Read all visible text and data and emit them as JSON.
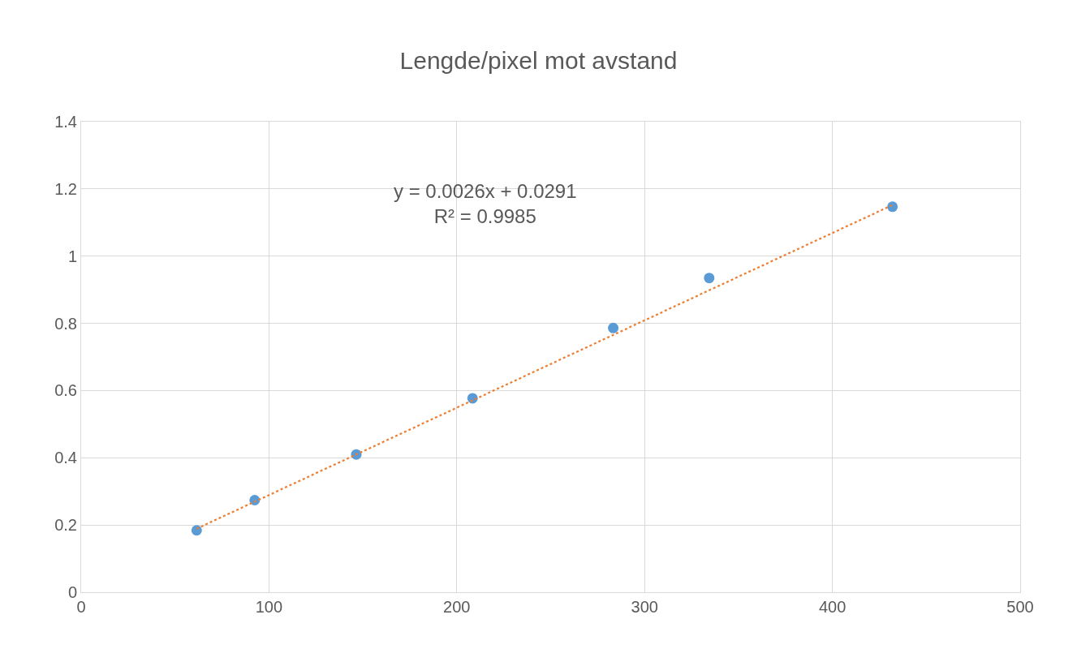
{
  "chart_data": {
    "type": "scatter",
    "title": "Lengde/pixel mot avstand",
    "series": [
      {
        "color": "#5b9bd5",
        "marker": "circle",
        "x": [
          61.5,
          92.4,
          146.5,
          208.4,
          283.3,
          334.4,
          432
        ],
        "values": [
          0.184,
          0.274,
          0.41,
          0.577,
          0.786,
          0.935,
          1.147
        ]
      },
      {
        "type": "line",
        "color": "#ed7d31",
        "marker": "none",
        "line_style": "dotted",
        "x": [
          61.5,
          432
        ],
        "values": [
          0.189,
          1.152
        ]
      }
    ],
    "annotations": [
      "y = 0.0026x + 0.0291\nR² = 0.9985"
    ],
    "xlim": [
      0,
      500
    ],
    "xticks": [
      0,
      100,
      200,
      300,
      400,
      500
    ],
    "ylim": [
      0,
      1.4
    ],
    "yticks": [
      0,
      0.2,
      0.4,
      0.6,
      0.8,
      1,
      1.2,
      1.4
    ],
    "grid": true
  }
}
